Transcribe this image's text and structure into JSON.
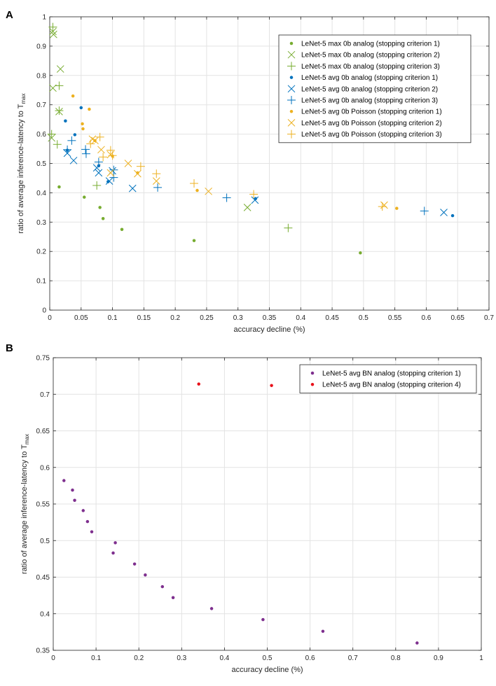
{
  "panels": {
    "a": "A",
    "b": "B"
  },
  "colors": {
    "green": "#77ac30",
    "blue": "#0072bd",
    "yellow": "#edb120",
    "purple": "#7e2f8e",
    "red": "#e8111a",
    "grid": "#e3e3e3",
    "axis": "#262626"
  },
  "chart_data": [
    {
      "type": "scatter",
      "panel": "A",
      "xlabel": "accuracy decline (%)",
      "ylabel_main": "ratio of average inference-latency to T",
      "ylabel_sub": "max",
      "xlim": [
        0,
        0.7
      ],
      "ylim": [
        0,
        1
      ],
      "xticks": [
        0,
        0.05,
        0.1,
        0.15,
        0.2,
        0.25,
        0.3,
        0.35,
        0.4,
        0.45,
        0.5,
        0.55,
        0.6,
        0.65,
        0.7
      ],
      "xtick_labels": [
        "0",
        "0.05",
        "0.1",
        "0.15",
        "0.2",
        "0.25",
        "0.3",
        "0.35",
        "0.4",
        "0.45",
        "0.5",
        "0.55",
        "0.6",
        "0.65",
        "0.7"
      ],
      "yticks": [
        0,
        0.1,
        0.2,
        0.3,
        0.4,
        0.5,
        0.6,
        0.7,
        0.8,
        0.9,
        1
      ],
      "ytick_labels": [
        "0",
        "0.1",
        "0.2",
        "0.3",
        "0.4",
        "0.5",
        "0.6",
        "0.7",
        "0.8",
        "0.9",
        "1"
      ],
      "grid": true,
      "legend_position": "top-right",
      "series": [
        {
          "name": "LeNet-5 max 0b analog (stopping criterion 1)",
          "color": "green",
          "marker": "dot",
          "x": [
            0.015,
            0.055,
            0.08,
            0.085,
            0.115,
            0.23,
            0.495
          ],
          "y": [
            0.42,
            0.385,
            0.35,
            0.312,
            0.275,
            0.237,
            0.195
          ]
        },
        {
          "name": "LeNet-5 max 0b analog (stopping criterion 2)",
          "color": "green",
          "marker": "x",
          "x": [
            0.005,
            0.006,
            0.005,
            0.017,
            0.015,
            0.003,
            0.315
          ],
          "y": [
            0.95,
            0.94,
            0.757,
            0.822,
            0.677,
            0.587,
            0.35
          ]
        },
        {
          "name": "LeNet-5 max 0b analog (stopping criterion 3)",
          "color": "green",
          "marker": "plus",
          "x": [
            0.005,
            0.015,
            0.015,
            0.003,
            0.012,
            0.075,
            0.38
          ],
          "y": [
            0.965,
            0.765,
            0.68,
            0.6,
            0.565,
            0.425,
            0.28
          ]
        },
        {
          "name": "LeNet-5 avg 0b analog (stopping criterion 1)",
          "color": "blue",
          "marker": "dot",
          "x": [
            0.05,
            0.025,
            0.04,
            0.028,
            0.078,
            0.093,
            0.328,
            0.642
          ],
          "y": [
            0.69,
            0.645,
            0.598,
            0.545,
            0.492,
            0.438,
            0.38,
            0.322
          ]
        },
        {
          "name": "LeNet-5 avg 0b analog (stopping criterion 2)",
          "color": "blue",
          "marker": "x",
          "x": [
            0.028,
            0.038,
            0.075,
            0.078,
            0.1,
            0.095,
            0.132,
            0.327,
            0.628
          ],
          "y": [
            0.535,
            0.51,
            0.485,
            0.468,
            0.475,
            0.44,
            0.415,
            0.375,
            0.333
          ]
        },
        {
          "name": "LeNet-5 avg 0b analog (stopping criterion 3)",
          "color": "blue",
          "marker": "plus",
          "x": [
            0.028,
            0.035,
            0.057,
            0.058,
            0.078,
            0.102,
            0.102,
            0.172,
            0.282,
            0.597
          ],
          "y": [
            0.547,
            0.578,
            0.548,
            0.533,
            0.505,
            0.478,
            0.452,
            0.418,
            0.383,
            0.338
          ]
        },
        {
          "name": "LeNet-5 avg 0b Poisson (stopping criterion 1)",
          "color": "yellow",
          "marker": "dot",
          "x": [
            0.037,
            0.052,
            0.063,
            0.053,
            0.072,
            0.1,
            0.14,
            0.235,
            0.553
          ],
          "y": [
            0.73,
            0.635,
            0.685,
            0.618,
            0.578,
            0.525,
            0.468,
            0.408,
            0.347
          ]
        },
        {
          "name": "LeNet-5 avg 0b Poisson (stopping criterion 2)",
          "color": "yellow",
          "marker": "x",
          "x": [
            0.068,
            0.072,
            0.082,
            0.097,
            0.097,
            0.125,
            0.14,
            0.17,
            0.253,
            0.533
          ],
          "y": [
            0.583,
            0.578,
            0.547,
            0.53,
            0.468,
            0.5,
            0.465,
            0.44,
            0.405,
            0.358
          ]
        },
        {
          "name": "LeNet-5 avg 0b Poisson (stopping criterion 3)",
          "color": "yellow",
          "marker": "plus",
          "x": [
            0.065,
            0.08,
            0.085,
            0.097,
            0.1,
            0.145,
            0.17,
            0.23,
            0.325,
            0.53
          ],
          "y": [
            0.567,
            0.59,
            0.522,
            0.545,
            0.527,
            0.49,
            0.465,
            0.432,
            0.395,
            0.353
          ]
        }
      ]
    },
    {
      "type": "scatter",
      "panel": "B",
      "xlabel": "accuracy decline (%)",
      "ylabel_main": "ratio of average inference-latency to T",
      "ylabel_sub": "max",
      "xlim": [
        0,
        1
      ],
      "ylim": [
        0.35,
        0.75
      ],
      "xticks": [
        0,
        0.1,
        0.2,
        0.3,
        0.4,
        0.5,
        0.6,
        0.7,
        0.8,
        0.9,
        1
      ],
      "xtick_labels": [
        "0",
        "0.1",
        "0.2",
        "0.3",
        "0.4",
        "0.5",
        "0.6",
        "0.7",
        "0.8",
        "0.9",
        "1"
      ],
      "yticks": [
        0.35,
        0.4,
        0.45,
        0.5,
        0.55,
        0.6,
        0.65,
        0.7,
        0.75
      ],
      "ytick_labels": [
        "0.35",
        "0.4",
        "0.45",
        "0.5",
        "0.55",
        "0.6",
        "0.65",
        "0.7",
        "0.75"
      ],
      "grid": true,
      "legend_position": "top-right",
      "series": [
        {
          "name": "LeNet-5 avg BN analog (stopping criterion 1)",
          "color": "purple",
          "marker": "dot",
          "x": [
            0.025,
            0.045,
            0.05,
            0.07,
            0.08,
            0.09,
            0.14,
            0.145,
            0.19,
            0.215,
            0.255,
            0.28,
            0.37,
            0.49,
            0.63,
            0.85
          ],
          "y": [
            0.582,
            0.569,
            0.555,
            0.541,
            0.526,
            0.512,
            0.483,
            0.497,
            0.468,
            0.453,
            0.437,
            0.422,
            0.407,
            0.392,
            0.376,
            0.36
          ]
        },
        {
          "name": "LeNet-5 avg BN analog (stopping criterion 4)",
          "color": "red",
          "marker": "dot",
          "x": [
            0.34,
            0.51
          ],
          "y": [
            0.714,
            0.712
          ]
        }
      ]
    }
  ]
}
